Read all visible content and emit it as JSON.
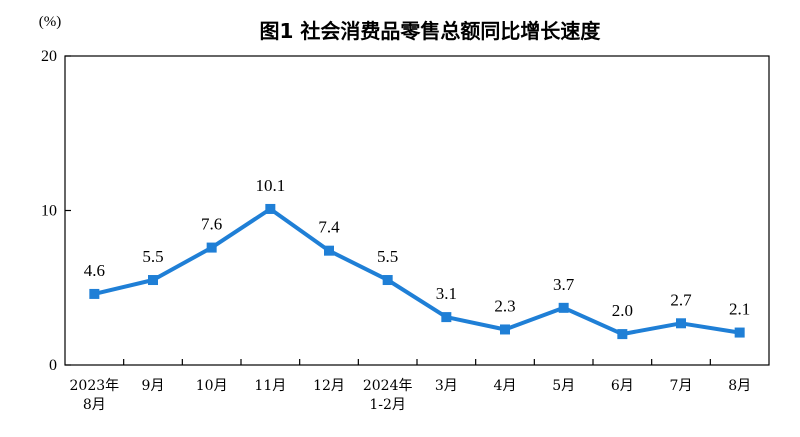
{
  "chart_data": {
    "type": "line",
    "title": "图1  社会消费品零售总额同比增长速度",
    "unit": "(%)",
    "ylim": [
      0,
      20
    ],
    "yticks": [
      "0",
      "10",
      "20"
    ],
    "categories": [
      [
        "2023年",
        "8月"
      ],
      [
        "9月"
      ],
      [
        "10月"
      ],
      [
        "11月"
      ],
      [
        "12月"
      ],
      [
        "2024年",
        "1-2月"
      ],
      [
        "3月"
      ],
      [
        "4月"
      ],
      [
        "5月"
      ],
      [
        "6月"
      ],
      [
        "7月"
      ],
      [
        "8月"
      ]
    ],
    "series": [
      {
        "values": [
          4.6,
          5.5,
          7.6,
          10.1,
          7.4,
          5.5,
          3.1,
          2.3,
          3.7,
          2.0,
          2.7,
          2.1
        ],
        "labels": [
          "4.6",
          "5.5",
          "7.6",
          "10.1",
          "7.4",
          "5.5",
          "3.1",
          "2.3",
          "3.7",
          "2.0",
          "2.7",
          "2.1"
        ],
        "color": "#1f7fd6"
      }
    ],
    "grid": false,
    "legend": "none"
  }
}
